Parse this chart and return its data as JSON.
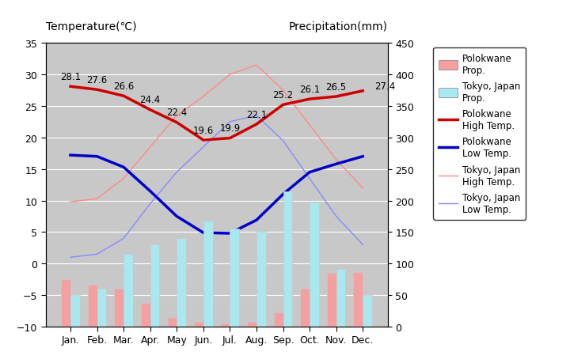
{
  "months": [
    "Jan.",
    "Feb.",
    "Mar.",
    "Apr.",
    "May",
    "Jun.",
    "Jul.",
    "Aug.",
    "Sep.",
    "Oct.",
    "Nov.",
    "Dec."
  ],
  "polokwane_precip": [
    75,
    67,
    60,
    38,
    15,
    8,
    5,
    7,
    22,
    60,
    85,
    87
  ],
  "tokyo_precip": [
    50,
    60,
    115,
    130,
    140,
    168,
    155,
    152,
    215,
    197,
    92,
    50
  ],
  "polokwane_high": [
    28.1,
    27.6,
    26.6,
    24.4,
    22.4,
    19.6,
    19.9,
    22.1,
    25.2,
    26.1,
    26.5,
    27.4
  ],
  "polokwane_low": [
    17.2,
    17.0,
    15.3,
    11.5,
    7.5,
    4.9,
    4.8,
    6.9,
    11.0,
    14.5,
    15.8,
    17.0
  ],
  "tokyo_high": [
    9.8,
    10.3,
    13.5,
    18.5,
    23.5,
    26.5,
    30.0,
    31.5,
    27.5,
    22.0,
    16.5,
    12.0
  ],
  "tokyo_low": [
    1.0,
    1.5,
    4.0,
    9.5,
    14.5,
    18.5,
    22.5,
    23.5,
    19.5,
    13.5,
    7.5,
    3.0
  ],
  "polokwane_high_labels": [
    "28.1",
    "27.6",
    "26.6",
    "24.4",
    "22.4",
    "19.6",
    "19.9",
    "22.1",
    "25.2",
    "26.1",
    "26.5",
    "27.4"
  ],
  "bg_color": "#c8c8c8",
  "polokwane_precip_color": "#f4a0a0",
  "tokyo_precip_color": "#aae8f0",
  "polokwane_high_color": "#cc0000",
  "polokwane_low_color": "#0000cc",
  "tokyo_high_color": "#ff8888",
  "tokyo_low_color": "#8888ff",
  "temp_ylim": [
    -10,
    35
  ],
  "temp_yticks": [
    -10,
    -5,
    0,
    5,
    10,
    15,
    20,
    25,
    30,
    35
  ],
  "precip_ylim": [
    0,
    450
  ],
  "precip_yticks": [
    0,
    50,
    100,
    150,
    200,
    250,
    300,
    350,
    400,
    450
  ],
  "title_left": "Temperature(℃)",
  "title_right": "Precipitation(mm)"
}
